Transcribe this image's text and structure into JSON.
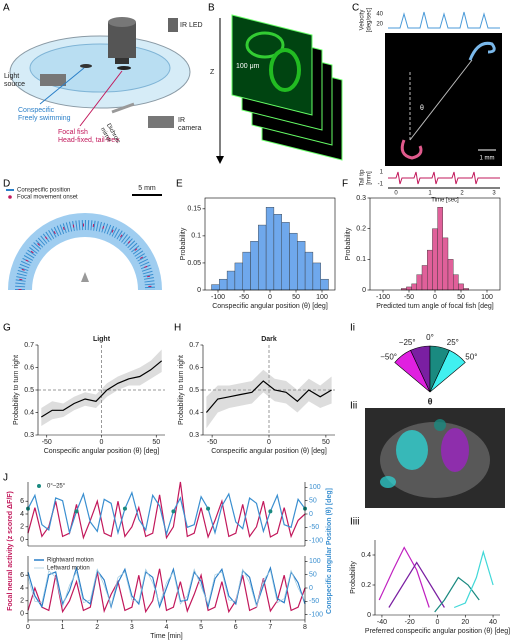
{
  "panel_labels": [
    "A",
    "B",
    "C",
    "D",
    "E",
    "F",
    "G",
    "H",
    "Ii",
    "Iii",
    "Iiii",
    "J"
  ],
  "panel_a": {
    "light_source": [
      "Light",
      "source"
    ],
    "ir_led": "IR LED",
    "conspecific": [
      "Conspecific",
      "Freely swimming"
    ],
    "focal": [
      "Focal fish",
      "Head-fixed, tail-free"
    ],
    "dichroic": [
      "Dichroic",
      "mirror"
    ],
    "ir_camera": [
      "IR",
      "camera"
    ]
  },
  "panel_b": {
    "axis": "Z",
    "scale": "100 μm"
  },
  "panel_c": {
    "velocity_label": [
      "Velocity",
      "[deg/sec]"
    ],
    "velocity_ticks": [
      "40",
      "20"
    ],
    "tail_label": [
      "Tail tip",
      "[mm]"
    ],
    "tail_ticks": [
      "1",
      "-1"
    ],
    "theta": "θ",
    "scale": "1 mm",
    "time_ticks": [
      "0",
      "1",
      "2",
      "3"
    ],
    "time_label": "Time [sec]"
  },
  "panel_d": {
    "legend": [
      "Conspecific position",
      "Focal movement onset"
    ],
    "scale": "5 mm"
  },
  "panel_ii": {
    "angles": [
      "−50°",
      "−25°",
      "0°",
      "25°",
      "50°"
    ],
    "theta": "θ"
  },
  "chart_data": [
    {
      "type": "histogram",
      "frame": true,
      "bins": [
        -112.5,
        -97.5,
        -82.5,
        -67.5,
        -52.5,
        -37.5,
        -22.5,
        -7.5,
        7.5,
        22.5,
        37.5,
        52.5,
        67.5,
        82.5,
        97.5,
        112.5
      ],
      "values": [
        0.01,
        0.02,
        0.035,
        0.05,
        0.07,
        0.09,
        0.12,
        0.153,
        0.14,
        0.125,
        0.105,
        0.09,
        0.07,
        0.05,
        0.02
      ],
      "color": "#6fa8ec",
      "xlim": [
        -125,
        125
      ],
      "xticks": [
        -100,
        -50,
        0,
        50,
        100
      ],
      "ylim": [
        0,
        0.17
      ],
      "yticks": [
        0,
        0.05,
        0.1,
        0.15
      ],
      "xlabel": "Conspecific angular position (θ) [deg]",
      "ylabel": "Probability"
    },
    {
      "type": "histogram",
      "frame": true,
      "bins": [
        -65,
        -55,
        -45,
        -35,
        -25,
        -15,
        -5,
        5,
        15,
        25,
        35,
        45,
        55,
        65
      ],
      "values": [
        0.005,
        0.01,
        0.02,
        0.05,
        0.08,
        0.13,
        0.2,
        0.27,
        0.17,
        0.1,
        0.05,
        0.02,
        0.005
      ],
      "color": "#e0609a",
      "xlim": [
        -125,
        125
      ],
      "xticks": [
        -100,
        -50,
        0,
        50,
        100
      ],
      "ylim": [
        0,
        0.3
      ],
      "yticks": [
        0,
        0.1,
        0.2,
        0.3
      ],
      "xlabel": "Predicted turn angle of focal fish [deg]",
      "ylabel": "Probability"
    },
    {
      "type": "line",
      "title": "Light",
      "x": [
        -55,
        -45,
        -35,
        -25,
        -15,
        -5,
        5,
        15,
        25,
        35,
        45,
        55
      ],
      "values": [
        0.38,
        0.41,
        0.41,
        0.44,
        0.46,
        0.45,
        0.5,
        0.53,
        0.55,
        0.56,
        0.59,
        0.63
      ],
      "lower": [
        0.34,
        0.37,
        0.38,
        0.41,
        0.43,
        0.42,
        0.47,
        0.5,
        0.52,
        0.52,
        0.55,
        0.58
      ],
      "upper": [
        0.42,
        0.45,
        0.44,
        0.47,
        0.49,
        0.48,
        0.53,
        0.56,
        0.58,
        0.6,
        0.63,
        0.68
      ],
      "color": "#000000",
      "xlim": [
        -58,
        58
      ],
      "xticks": [
        -50,
        0,
        50
      ],
      "ylim": [
        0.3,
        0.7
      ],
      "yticks": [
        0.3,
        0.4,
        0.5,
        0.6,
        0.7
      ],
      "hline": 0.5,
      "vline": 0,
      "xlabel": "Conspecific angular position (θ) [deg]",
      "ylabel": "Probability to turn right"
    },
    {
      "type": "line",
      "title": "Dark",
      "x": [
        -55,
        -45,
        -35,
        -25,
        -15,
        -5,
        5,
        15,
        25,
        35,
        45,
        55
      ],
      "values": [
        0.4,
        0.46,
        0.47,
        0.48,
        0.49,
        0.54,
        0.5,
        0.49,
        0.45,
        0.5,
        0.47,
        0.5
      ],
      "lower": [
        0.33,
        0.4,
        0.42,
        0.43,
        0.44,
        0.49,
        0.45,
        0.44,
        0.4,
        0.45,
        0.42,
        0.44
      ],
      "upper": [
        0.47,
        0.52,
        0.52,
        0.53,
        0.54,
        0.59,
        0.55,
        0.54,
        0.5,
        0.55,
        0.52,
        0.56
      ],
      "color": "#000000",
      "xlim": [
        -58,
        58
      ],
      "xticks": [
        -50,
        0,
        50
      ],
      "ylim": [
        0.3,
        0.7
      ],
      "yticks": [
        0.3,
        0.4,
        0.5,
        0.6,
        0.7
      ],
      "hline": 0.5,
      "vline": 0,
      "xlabel": "Conspecific angular position (θ) [deg]",
      "ylabel": "Probability to turn right"
    },
    {
      "type": "line",
      "series": [
        {
          "color": "#c020c0",
          "x": [
            -42,
            -32,
            -24,
            -15,
            -6
          ],
          "values": [
            0.1,
            0.3,
            0.45,
            0.3,
            0.05
          ]
        },
        {
          "color": "#7a1fa2",
          "x": [
            -35,
            -25,
            -15,
            -5,
            5
          ],
          "values": [
            0.05,
            0.2,
            0.35,
            0.2,
            0.05
          ]
        },
        {
          "color": "#1a8a80",
          "x": [
            -2,
            5,
            15,
            22,
            30
          ],
          "values": [
            0.02,
            0.1,
            0.25,
            0.2,
            0.1
          ]
        },
        {
          "color": "#40d8d8",
          "x": [
            12,
            20,
            28,
            33,
            40
          ],
          "values": [
            0.05,
            0.08,
            0.25,
            0.42,
            0.2
          ]
        }
      ],
      "xlim": [
        -45,
        45
      ],
      "xticks": [
        -40,
        -20,
        0,
        20,
        40
      ],
      "ylim": [
        0,
        0.5
      ],
      "yticks": [
        0,
        0.2,
        0.4
      ],
      "xlabel": "Preferred conspecific angular position (θ) [deg]",
      "ylabel": "Probability"
    },
    {
      "type": "line",
      "x": [
        0,
        0.2,
        0.4,
        0.6,
        0.8,
        1,
        1.2,
        1.4,
        1.6,
        1.8,
        2,
        2.2,
        2.4,
        2.6,
        2.8,
        3,
        3.2,
        3.4,
        3.6,
        3.8,
        4,
        4.2,
        4.4,
        4.6,
        4.8,
        5,
        5.2,
        5.4,
        5.6,
        5.8,
        6,
        6.2,
        6.4,
        6.6,
        6.8,
        7,
        7.2,
        7.4,
        7.6,
        7.8,
        8
      ],
      "series": [
        {
          "color": "#c2185b",
          "values": [
            1,
            5,
            0.5,
            2,
            6,
            0.5,
            1,
            5.5,
            0.3,
            3,
            6,
            1,
            0.5,
            6,
            0.5,
            2,
            5,
            0.5,
            1,
            7,
            0.3,
            2,
            9,
            0.5,
            1,
            5,
            0.4,
            3,
            6,
            0.5,
            1,
            5.5,
            0.5,
            2,
            6,
            0.4,
            1,
            5,
            0.5,
            3,
            4
          ]
        },
        {
          "color": "#3a8fd0",
          "axis": "y2",
          "values": [
            20,
            70,
            -40,
            -60,
            60,
            50,
            -70,
            10,
            75,
            -30,
            -65,
            55,
            40,
            -70,
            20,
            80,
            -20,
            -60,
            70,
            30,
            -75,
            10,
            60,
            -50,
            -40,
            65,
            20,
            -70,
            30,
            75,
            -30,
            -55,
            60,
            40,
            -65,
            10,
            70,
            -40,
            -50,
            55,
            20
          ]
        },
        {
          "name": "0°–25°",
          "color": "#1a8a80",
          "axis": "y2",
          "style": "markers",
          "values": [
            20,
            null,
            null,
            null,
            null,
            null,
            null,
            10,
            null,
            null,
            null,
            null,
            null,
            null,
            20,
            null,
            null,
            null,
            null,
            null,
            null,
            10,
            null,
            null,
            null,
            null,
            20,
            null,
            null,
            null,
            null,
            null,
            null,
            null,
            null,
            10,
            null,
            null,
            null,
            null,
            20
          ]
        }
      ],
      "xlim": [
        0,
        8
      ],
      "ylim": [
        -1,
        9
      ],
      "yticks": [
        0,
        2,
        4,
        6
      ],
      "y2lim": [
        -120,
        120
      ],
      "y2ticks": [
        -100,
        -50,
        0,
        50,
        100
      ],
      "legend": "upper left",
      "ylabel": "Focal neural activity (z scored ΔF/F)",
      "ylabel_color": "#c2185b",
      "y2label": "Conspecific angular Position (θ) [deg]",
      "y2label_color": "#3a8fd0"
    },
    {
      "type": "line",
      "x": [
        0,
        0.2,
        0.4,
        0.6,
        0.8,
        1,
        1.2,
        1.4,
        1.6,
        1.8,
        2,
        2.2,
        2.4,
        2.6,
        2.8,
        3,
        3.2,
        3.4,
        3.6,
        3.8,
        4,
        4.2,
        4.4,
        4.6,
        4.8,
        5,
        5.2,
        5.4,
        5.6,
        5.8,
        6,
        6.2,
        6.4,
        6.6,
        6.8,
        7,
        7.2,
        7.4,
        7.6,
        7.8,
        8
      ],
      "series": [
        {
          "color": "#c2185b",
          "values": [
            0.5,
            4,
            1,
            0.5,
            6,
            0.3,
            2,
            5,
            0.5,
            1,
            6.5,
            0.4,
            3,
            5,
            0.5,
            1,
            6,
            0.3,
            2,
            7,
            0.5,
            1,
            5,
            0.4,
            3,
            6,
            0.5,
            1,
            5,
            0.3,
            2,
            6,
            0.5,
            1,
            5.5,
            0.4,
            2,
            6,
            0.5,
            1,
            4
          ]
        },
        {
          "name": "Rightward motion",
          "color": "#2a7fc8",
          "axis": "y2",
          "values": [
            60,
            -30,
            -70,
            50,
            60,
            -60,
            -10,
            75,
            -40,
            -60,
            65,
            30,
            -70,
            20,
            70,
            -30,
            -60,
            60,
            40,
            -70,
            0,
            70,
            -50,
            -45,
            60,
            25,
            -70,
            35,
            70,
            -30,
            -60,
            65,
            40,
            -65,
            10,
            75,
            -40,
            -55,
            60,
            20,
            -60
          ]
        },
        {
          "name": "Leftward motion",
          "color": "#9ecae1",
          "axis": "y2",
          "style": "thin",
          "values": [
            40,
            -50,
            -55,
            65,
            40,
            -70,
            10,
            60,
            -55,
            -45,
            70,
            10,
            -65,
            40,
            60,
            -45,
            -50,
            70,
            20,
            -60,
            20,
            60,
            -60,
            -30,
            70,
            5,
            -60,
            50,
            60,
            -45,
            -50,
            70,
            20,
            -70,
            30,
            65,
            -55,
            -40,
            65,
            0,
            -50
          ]
        }
      ],
      "xlim": [
        0,
        8
      ],
      "xticks": [
        0,
        1,
        2,
        3,
        4,
        5,
        6,
        7,
        8
      ],
      "ylim": [
        -1,
        9
      ],
      "yticks": [
        0,
        2,
        4,
        6
      ],
      "y2lim": [
        -120,
        120
      ],
      "y2ticks": [
        -100,
        -50,
        0,
        50,
        100
      ],
      "legend": "upper left",
      "xlabel": "Time [min]"
    }
  ]
}
